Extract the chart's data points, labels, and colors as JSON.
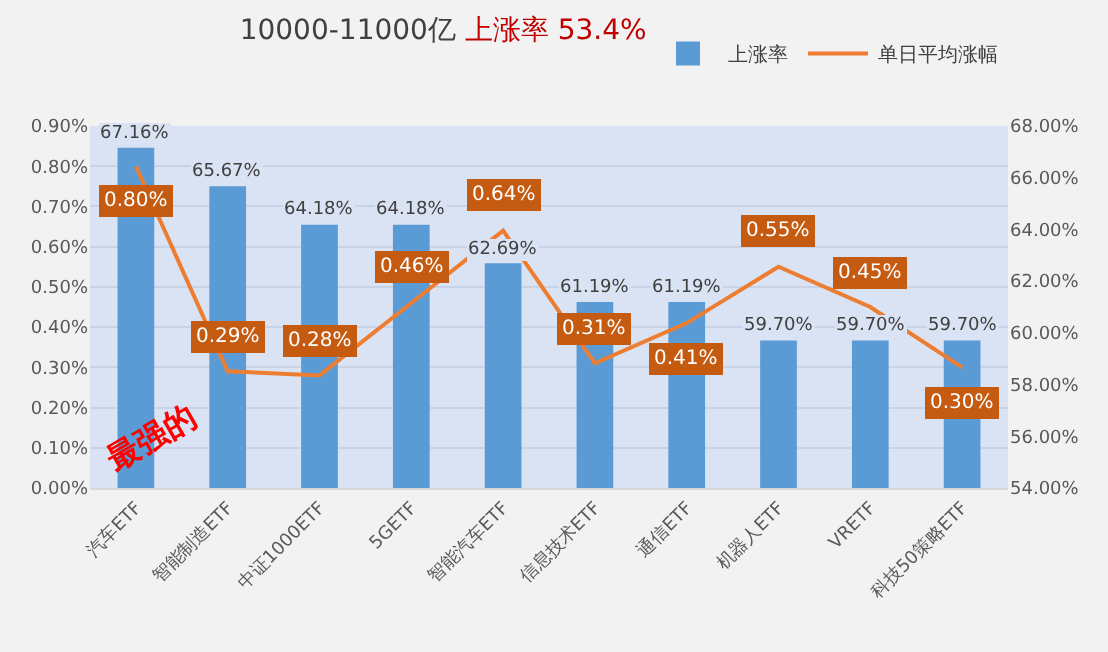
{
  "chart_data": {
    "type": "bar",
    "title": "10000-11000亿",
    "subtitle": "上涨率 53.4%",
    "categories": [
      "汽车ETF",
      "智能制造ETF",
      "中证1000ETF",
      "5GETF",
      "智能汽车ETF",
      "信息技术ETF",
      "通信ETF",
      "机器人ETF",
      "VRETF",
      "科技50策略ETF"
    ],
    "series": [
      {
        "name": "上涨率",
        "axis": "y2",
        "color": "#5b9bd5",
        "values": [
          67.16,
          65.67,
          64.18,
          64.18,
          62.69,
          61.19,
          61.19,
          59.7,
          59.7,
          59.7
        ],
        "value_labels": [
          "67.16%",
          "65.67%",
          "64.18%",
          "64.18%",
          "62.69%",
          "61.19%",
          "61.19%",
          "59.70%",
          "59.70%",
          "59.70%"
        ]
      },
      {
        "name": "单日平均涨幅",
        "type": "line",
        "axis": "y",
        "color": "#ed7d31",
        "values": [
          0.8,
          0.29,
          0.28,
          0.46,
          0.64,
          0.31,
          0.41,
          0.55,
          0.45,
          0.3
        ],
        "value_labels": [
          "0.80%",
          "0.29%",
          "0.28%",
          "0.46%",
          "0.64%",
          "0.31%",
          "0.41%",
          "0.55%",
          "0.45%",
          "0.30%"
        ]
      }
    ],
    "ylim": [
      0,
      0.9
    ],
    "yticks": [
      {
        "value": 0,
        "label": "0.00%"
      },
      {
        "value": 0.1,
        "label": "0.10%"
      },
      {
        "value": 0.2,
        "label": "0.20%"
      },
      {
        "value": 0.3,
        "label": "0.30%"
      },
      {
        "value": 0.4,
        "label": "0.40%"
      },
      {
        "value": 0.5,
        "label": "0.50%"
      },
      {
        "value": 0.6,
        "label": "0.60%"
      },
      {
        "value": 0.7,
        "label": "0.70%"
      },
      {
        "value": 0.8,
        "label": "0.80%"
      },
      {
        "value": 0.9,
        "label": "0.90%"
      }
    ],
    "y2lim": [
      54,
      68
    ],
    "y2ticks": [
      {
        "value": 54,
        "label": "54.00%"
      },
      {
        "value": 56,
        "label": "56.00%"
      },
      {
        "value": 58,
        "label": "58.00%"
      },
      {
        "value": 60,
        "label": "60.00%"
      },
      {
        "value": 62,
        "label": "62.00%"
      },
      {
        "value": 64,
        "label": "64.00%"
      },
      {
        "value": 66,
        "label": "66.00%"
      },
      {
        "value": 68,
        "label": "68.00%"
      }
    ],
    "grid": "y",
    "legend": "top right",
    "marker": "none",
    "line_style": "solid",
    "annotations": [
      "最强的"
    ]
  }
}
